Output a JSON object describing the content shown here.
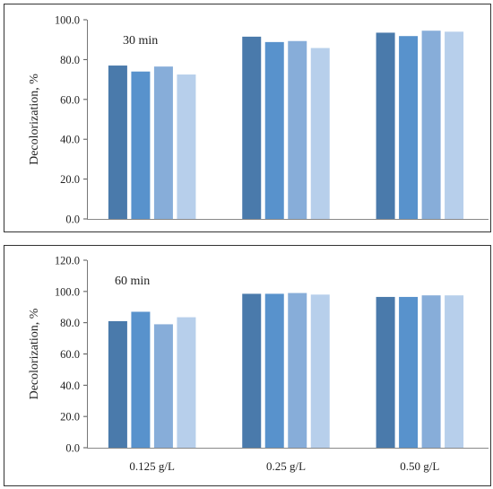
{
  "chart_data": [
    {
      "type": "bar",
      "title": "30 min",
      "ylabel": "Decolorization, %",
      "xlabel": "",
      "categories": [
        "0.125 g/L",
        "0.25 g/L",
        "0.50 g/L"
      ],
      "show_category_labels": false,
      "ylim": [
        0,
        100
      ],
      "yticks": [
        "0.0",
        "20.0",
        "40.0",
        "60.0",
        "80.0",
        "100.0"
      ],
      "grid": false,
      "series": [
        {
          "values": [
            77.0,
            91.5,
            93.5
          ],
          "color": "#4a7aab"
        },
        {
          "values": [
            74.0,
            88.8,
            91.8
          ],
          "color": "#5892cc"
        },
        {
          "values": [
            76.5,
            89.3,
            94.5
          ],
          "color": "#87add9"
        },
        {
          "values": [
            72.5,
            85.8,
            94.0
          ],
          "color": "#b7cfeb"
        }
      ]
    },
    {
      "type": "bar",
      "title": "60 min",
      "ylabel": "Decolorization, %",
      "xlabel": "",
      "categories": [
        "0.125 g/L",
        "0.25 g/L",
        "0.50 g/L"
      ],
      "show_category_labels": true,
      "ylim": [
        0,
        120
      ],
      "yticks": [
        "0.0",
        "20.0",
        "40.0",
        "60.0",
        "80.0",
        "100.0",
        "120.0"
      ],
      "grid": false,
      "series": [
        {
          "values": [
            81.0,
            98.5,
            96.5
          ],
          "color": "#4a7aab"
        },
        {
          "values": [
            87.0,
            98.5,
            96.5
          ],
          "color": "#5892cc"
        },
        {
          "values": [
            79.0,
            99.0,
            97.5
          ],
          "color": "#87add9"
        },
        {
          "values": [
            83.5,
            98.0,
            97.5
          ],
          "color": "#b7cfeb"
        }
      ]
    }
  ]
}
